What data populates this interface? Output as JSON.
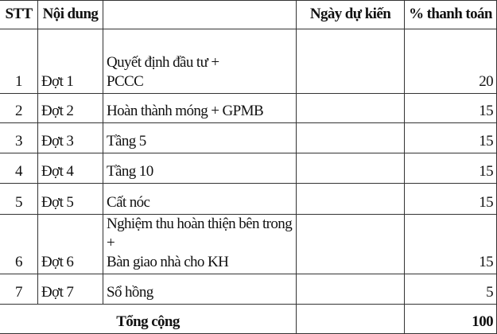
{
  "header": {
    "stt": "STT",
    "noi_dung": "Nội dung",
    "mo_ta": "",
    "ngay_du_kien": "Ngày dự kiến",
    "thanh_toan": "% thanh toán"
  },
  "rows": [
    {
      "stt": "1",
      "dot": "Đợt 1",
      "lines": [
        "Quyết định đầu tư +",
        "PCCC"
      ],
      "ngay": "",
      "pct": "20"
    },
    {
      "stt": "2",
      "dot": "Đợt 2",
      "lines": [
        "Hoàn thành móng + GPMB"
      ],
      "ngay": "",
      "pct": "15"
    },
    {
      "stt": "3",
      "dot": "Đợt 3",
      "lines": [
        "Tầng 5"
      ],
      "ngay": "",
      "pct": "15"
    },
    {
      "stt": "4",
      "dot": "Đợt 4",
      "lines": [
        "Tầng 10"
      ],
      "ngay": "",
      "pct": "15"
    },
    {
      "stt": "5",
      "dot": "Đợt 5",
      "lines": [
        "Cất nóc"
      ],
      "ngay": "",
      "pct": "15"
    },
    {
      "stt": "6",
      "dot": "Đợt 6",
      "lines": [
        "Nghiệm thu hoàn thiện bên trong +",
        "Bàn giao nhà cho KH"
      ],
      "ngay": "",
      "pct": "15"
    },
    {
      "stt": "7",
      "dot": "Đợt 7",
      "lines": [
        "Sổ hồng"
      ],
      "ngay": "",
      "pct": "5"
    }
  ],
  "total": {
    "label": "Tổng cộng",
    "ngay": "",
    "pct": "100"
  }
}
